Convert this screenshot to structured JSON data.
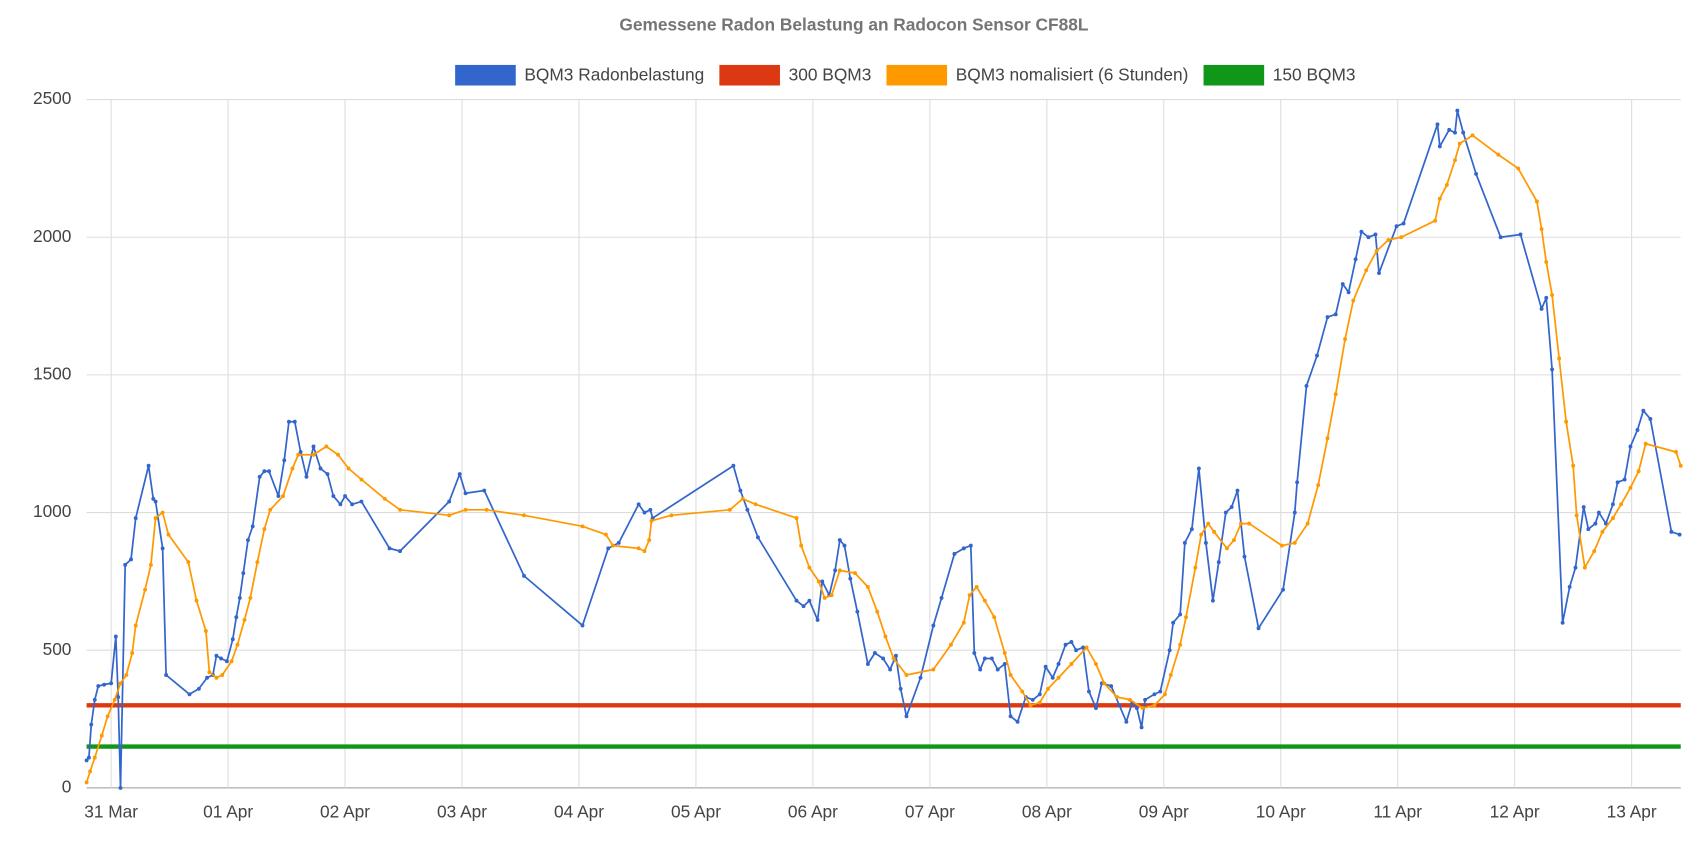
{
  "chart_data": {
    "type": "line",
    "title": "Gemessene Radon Belastung an Radocon Sensor CF88L",
    "xlim": [
      -0.21,
      13.42
    ],
    "xticks": [
      {
        "value": 0,
        "label": "31 Mar"
      },
      {
        "value": 1,
        "label": "01 Apr"
      },
      {
        "value": 2,
        "label": "02 Apr"
      },
      {
        "value": 3,
        "label": "03 Apr"
      },
      {
        "value": 4,
        "label": "04 Apr"
      },
      {
        "value": 5,
        "label": "05 Apr"
      },
      {
        "value": 6,
        "label": "06 Apr"
      },
      {
        "value": 7,
        "label": "07 Apr"
      },
      {
        "value": 8,
        "label": "08 Apr"
      },
      {
        "value": 9,
        "label": "09 Apr"
      },
      {
        "value": 10,
        "label": "10 Apr"
      },
      {
        "value": 11,
        "label": "11 Apr"
      },
      {
        "value": 12,
        "label": "12 Apr"
      },
      {
        "value": 13,
        "label": "13 Apr"
      }
    ],
    "ylim": [
      0,
      2500
    ],
    "yticks": [
      0,
      500,
      1000,
      1500,
      2000,
      2500
    ],
    "grid": true,
    "legend": "top",
    "series": [
      {
        "name": "BQM3 Radonbelastung",
        "color": "#3366cc",
        "markers": true,
        "x": [
          -0.21,
          -0.19,
          -0.17,
          -0.14,
          -0.11,
          -0.06,
          0.0,
          0.04,
          0.06,
          0.08,
          0.12,
          0.17,
          0.21,
          0.32,
          0.36,
          0.38,
          0.44,
          0.47,
          0.67,
          0.75,
          0.82,
          0.87,
          0.9,
          0.94,
          0.99,
          1.04,
          1.07,
          1.1,
          1.13,
          1.17,
          1.21,
          1.27,
          1.31,
          1.35,
          1.43,
          1.48,
          1.52,
          1.57,
          1.62,
          1.67,
          1.73,
          1.79,
          1.85,
          1.9,
          1.96,
          2.0,
          2.06,
          2.14,
          2.38,
          2.47,
          2.89,
          2.98,
          3.03,
          3.19,
          3.53,
          4.03,
          4.25,
          4.34,
          4.51,
          4.56,
          4.61,
          4.63,
          5.32,
          5.38,
          5.44,
          5.53,
          5.86,
          5.92,
          5.97,
          6.04,
          6.08,
          6.14,
          6.19,
          6.23,
          6.27,
          6.32,
          6.38,
          6.47,
          6.53,
          6.6,
          6.66,
          6.71,
          6.75,
          6.8,
          6.92,
          7.03,
          7.1,
          7.21,
          7.29,
          7.35,
          7.38,
          7.43,
          7.47,
          7.53,
          7.58,
          7.64,
          7.69,
          7.75,
          7.82,
          7.88,
          7.94,
          7.99,
          8.05,
          8.1,
          8.16,
          8.21,
          8.25,
          8.31,
          8.36,
          8.42,
          8.47,
          8.55,
          8.62,
          8.68,
          8.73,
          8.77,
          8.81,
          8.84,
          8.92,
          8.97,
          9.05,
          9.08,
          9.14,
          9.18,
          9.24,
          9.3,
          9.36,
          9.42,
          9.47,
          9.53,
          9.58,
          9.63,
          9.69,
          9.81,
          10.02,
          10.12,
          10.14,
          10.22,
          10.31,
          10.4,
          10.47,
          10.53,
          10.58,
          10.64,
          10.69,
          10.75,
          10.81,
          10.84,
          10.99,
          11.05,
          11.34,
          11.36,
          11.44,
          11.49,
          11.51,
          11.56,
          11.67,
          11.88,
          12.05,
          12.23,
          12.27,
          12.32,
          12.41,
          12.47,
          12.52,
          12.59,
          12.63,
          12.69,
          12.72,
          12.78,
          12.84,
          12.88,
          12.94,
          12.99,
          13.05,
          13.1,
          13.16,
          13.34,
          13.41
        ],
        "values": [
          100,
          110,
          230,
          320,
          370,
          375,
          380,
          550,
          330,
          0,
          810,
          830,
          980,
          1170,
          1050,
          1040,
          870,
          410,
          340,
          360,
          400,
          410,
          480,
          470,
          460,
          540,
          620,
          690,
          780,
          900,
          950,
          1130,
          1150,
          1150,
          1060,
          1190,
          1330,
          1330,
          1220,
          1130,
          1240,
          1160,
          1140,
          1060,
          1030,
          1060,
          1030,
          1040,
          870,
          860,
          1040,
          1140,
          1070,
          1080,
          770,
          590,
          870,
          890,
          1030,
          1000,
          1010,
          980,
          1170,
          1080,
          1010,
          910,
          680,
          660,
          680,
          610,
          750,
          700,
          790,
          900,
          880,
          760,
          640,
          450,
          490,
          470,
          430,
          480,
          360,
          260,
          400,
          590,
          690,
          850,
          870,
          880,
          490,
          430,
          470,
          470,
          430,
          450,
          260,
          240,
          330,
          320,
          340,
          440,
          400,
          450,
          520,
          530,
          500,
          510,
          350,
          290,
          380,
          370,
          300,
          240,
          310,
          290,
          220,
          320,
          340,
          350,
          500,
          600,
          630,
          890,
          940,
          1160,
          890,
          680,
          820,
          1000,
          1020,
          1080,
          840,
          580,
          720,
          1000,
          1110,
          1460,
          1570,
          1710,
          1720,
          1830,
          1800,
          1920,
          2020,
          2000,
          2010,
          1870,
          2040,
          2050,
          2410,
          2330,
          2390,
          2380,
          2460,
          2380,
          2230,
          2000,
          2010,
          1740,
          1780,
          1520,
          600,
          730,
          800,
          1020,
          940,
          960,
          1000,
          960,
          1030,
          1110,
          1120,
          1240,
          1300,
          1370,
          1340,
          930,
          920
        ]
      },
      {
        "name": "300 BQM3",
        "color": "#dc3912",
        "markers": false,
        "x": [
          -0.21,
          13.42
        ],
        "values": [
          300,
          300
        ]
      },
      {
        "name": "BQM3 nomalisiert (6 Stunden)",
        "color": "#ff9900",
        "markers": true,
        "x": [
          -0.21,
          -0.18,
          -0.14,
          -0.08,
          -0.03,
          0.03,
          0.08,
          0.13,
          0.18,
          0.21,
          0.29,
          0.34,
          0.38,
          0.44,
          0.49,
          0.66,
          0.73,
          0.81,
          0.84,
          0.9,
          0.95,
          1.03,
          1.08,
          1.14,
          1.19,
          1.25,
          1.31,
          1.36,
          1.47,
          1.55,
          1.6,
          1.73,
          1.84,
          1.94,
          2.03,
          2.14,
          2.34,
          2.47,
          2.89,
          3.03,
          3.21,
          3.53,
          4.03,
          4.23,
          4.29,
          4.51,
          4.56,
          4.6,
          4.62,
          4.79,
          5.29,
          5.4,
          5.51,
          5.86,
          5.9,
          5.97,
          6.05,
          6.1,
          6.16,
          6.23,
          6.36,
          6.47,
          6.55,
          6.62,
          6.69,
          6.8,
          7.03,
          7.18,
          7.29,
          7.34,
          7.4,
          7.47,
          7.55,
          7.64,
          7.69,
          7.79,
          7.86,
          7.94,
          8.01,
          8.1,
          8.21,
          8.34,
          8.42,
          8.49,
          8.6,
          8.71,
          8.82,
          8.92,
          9.01,
          9.06,
          9.14,
          9.19,
          9.27,
          9.32,
          9.38,
          9.43,
          9.54,
          9.6,
          9.66,
          9.73,
          10.01,
          10.12,
          10.23,
          10.32,
          10.4,
          10.47,
          10.55,
          10.62,
          10.73,
          10.82,
          10.92,
          11.03,
          11.32,
          11.36,
          11.42,
          11.49,
          11.53,
          11.64,
          11.86,
          12.03,
          12.19,
          12.23,
          12.27,
          12.32,
          12.38,
          12.44,
          12.5,
          12.53,
          12.6,
          12.68,
          12.75,
          12.84,
          12.91,
          12.99,
          13.06,
          13.12,
          13.38,
          13.42
        ],
        "values": [
          20,
          60,
          110,
          190,
          260,
          320,
          380,
          410,
          490,
          590,
          720,
          810,
          980,
          1000,
          920,
          820,
          680,
          570,
          420,
          400,
          410,
          460,
          520,
          610,
          690,
          820,
          940,
          1010,
          1060,
          1160,
          1210,
          1210,
          1240,
          1210,
          1160,
          1120,
          1050,
          1010,
          990,
          1010,
          1010,
          990,
          950,
          920,
          880,
          870,
          860,
          900,
          970,
          990,
          1010,
          1050,
          1030,
          980,
          880,
          800,
          750,
          690,
          700,
          790,
          780,
          730,
          640,
          550,
          470,
          410,
          430,
          520,
          600,
          700,
          730,
          680,
          620,
          490,
          410,
          350,
          300,
          310,
          360,
          400,
          450,
          510,
          450,
          380,
          330,
          320,
          290,
          300,
          340,
          410,
          520,
          620,
          800,
          920,
          960,
          930,
          870,
          900,
          960,
          960,
          880,
          890,
          960,
          1100,
          1270,
          1430,
          1630,
          1770,
          1880,
          1950,
          1990,
          2000,
          2060,
          2140,
          2190,
          2280,
          2340,
          2370,
          2300,
          2250,
          2130,
          2030,
          1910,
          1790,
          1560,
          1330,
          1170,
          990,
          800,
          860,
          930,
          980,
          1030,
          1090,
          1150,
          1250,
          1220,
          1170
        ]
      },
      {
        "name": "150 BQM3",
        "color": "#109618",
        "markers": false,
        "x": [
          -0.21,
          13.42
        ],
        "values": [
          150,
          150
        ]
      }
    ]
  }
}
